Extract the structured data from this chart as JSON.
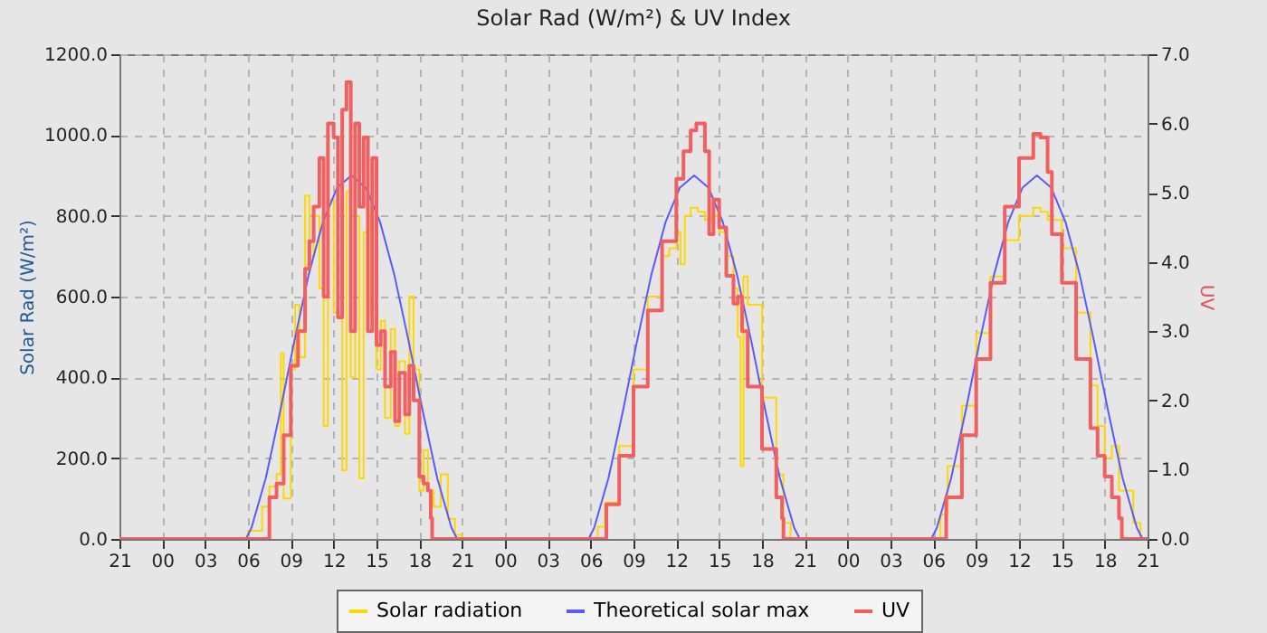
{
  "chart_data": {
    "type": "line",
    "title": "Solar Rad (W/m²) &  UV Index",
    "ylabel": "Solar Rad (W/m²)",
    "y2label": "UV",
    "legend": "bottom",
    "grid": true,
    "xlim": [
      "--01-01T21:00",
      "--01-04T21:00"
    ],
    "ylim": [
      0,
      1200
    ],
    "y2lim": [
      0,
      7
    ],
    "xticks": [
      {
        "value": "--01-01T21:00",
        "label": "21"
      },
      {
        "value": "--01-02T00:00",
        "label": "00"
      },
      {
        "value": "--01-02T03:00",
        "label": "03"
      },
      {
        "value": "--01-02T06:00",
        "label": "06"
      },
      {
        "value": "--01-02T09:00",
        "label": "09"
      },
      {
        "value": "--01-02T12:00",
        "label": "12"
      },
      {
        "value": "--01-02T15:00",
        "label": "15"
      },
      {
        "value": "--01-02T18:00",
        "label": "18"
      },
      {
        "value": "--01-02T21:00",
        "label": "21"
      },
      {
        "value": "--01-03T00:00",
        "label": "00"
      },
      {
        "value": "--01-03T03:00",
        "label": "03"
      },
      {
        "value": "--01-03T06:00",
        "label": "06"
      },
      {
        "value": "--01-03T09:00",
        "label": "09"
      },
      {
        "value": "--01-03T12:00",
        "label": "12"
      },
      {
        "value": "--01-03T15:00",
        "label": "15"
      },
      {
        "value": "--01-03T18:00",
        "label": "18"
      },
      {
        "value": "--01-03T21:00",
        "label": "21"
      },
      {
        "value": "--01-04T00:00",
        "label": "00"
      },
      {
        "value": "--01-04T03:00",
        "label": "03"
      },
      {
        "value": "--01-04T06:00",
        "label": "06"
      },
      {
        "value": "--01-04T09:00",
        "label": "09"
      },
      {
        "value": "--01-04T12:00",
        "label": "12"
      },
      {
        "value": "--01-04T15:00",
        "label": "15"
      },
      {
        "value": "--01-04T18:00",
        "label": "18"
      },
      {
        "value": "--01-04T21:00",
        "label": "21"
      }
    ],
    "yticks": [
      {
        "value": 0,
        "label": "0.0"
      },
      {
        "value": 200,
        "label": "200.0"
      },
      {
        "value": 400,
        "label": "400.0"
      },
      {
        "value": 600,
        "label": "600.0"
      },
      {
        "value": 800,
        "label": "800.0"
      },
      {
        "value": 1000,
        "label": "1000.0"
      },
      {
        "value": 1200,
        "label": "1200.0"
      }
    ],
    "y2ticks": [
      {
        "value": 0,
        "label": "0.0"
      },
      {
        "value": 1,
        "label": "1.0"
      },
      {
        "value": 2,
        "label": "2.0"
      },
      {
        "value": 3,
        "label": "3.0"
      },
      {
        "value": 4,
        "label": "4.0"
      },
      {
        "value": 5,
        "label": "5.0"
      },
      {
        "value": 6,
        "label": "6.0"
      },
      {
        "value": 7,
        "label": "7.0"
      }
    ],
    "series": [
      {
        "name": "Solar radiation",
        "color": "#ffd700",
        "type": "step",
        "x": [
          "--01-01T21:00",
          "--01-02T05:30",
          "--01-02T06:00",
          "--01-02T07:00",
          "--01-02T07:30",
          "--01-02T08:00",
          "--01-02T08:18",
          "--01-02T08:30",
          "--01-02T09:00",
          "--01-02T09:18",
          "--01-02T09:36",
          "--01-02T10:00",
          "--01-02T10:18",
          "--01-02T10:36",
          "--01-02T11:00",
          "--01-02T11:18",
          "--01-02T11:36",
          "--01-02T12:00",
          "--01-02T12:18",
          "--01-02T12:36",
          "--01-02T12:54",
          "--01-02T13:12",
          "--01-02T13:30",
          "--01-02T13:48",
          "--01-02T14:06",
          "--01-02T14:24",
          "--01-02T14:36",
          "--01-02T15:00",
          "--01-02T15:18",
          "--01-02T15:36",
          "--01-02T16:00",
          "--01-02T16:18",
          "--01-02T16:36",
          "--01-02T17:00",
          "--01-02T17:18",
          "--01-02T17:36",
          "--01-02T18:00",
          "--01-02T18:18",
          "--01-02T18:36",
          "--01-02T19:00",
          "--01-02T19:30",
          "--01-02T20:00",
          "--01-02T20:30",
          "--01-02T21:00",
          "--01-03T06:00",
          "--01-03T06:30",
          "--01-03T07:00",
          "--01-03T08:00",
          "--01-03T09:00",
          "--01-03T10:00",
          "--01-03T11:00",
          "--01-03T11:30",
          "--01-03T12:00",
          "--01-03T12:18",
          "--01-03T12:36",
          "--01-03T13:00",
          "--01-03T13:30",
          "--01-03T14:00",
          "--01-03T14:30",
          "--01-03T15:00",
          "--01-03T15:30",
          "--01-03T16:00",
          "--01-03T16:18",
          "--01-03T16:30",
          "--01-03T16:42",
          "--01-03T17:00",
          "--01-03T18:00",
          "--01-03T19:00",
          "--01-03T19:30",
          "--01-03T20:00",
          "--01-04T06:00",
          "--01-04T06:30",
          "--01-04T07:00",
          "--01-04T08:00",
          "--01-04T09:00",
          "--01-04T10:00",
          "--01-04T11:00",
          "--01-04T12:00",
          "--01-04T13:00",
          "--01-04T13:30",
          "--01-04T14:00",
          "--01-04T15:00",
          "--01-04T16:00",
          "--01-04T17:00",
          "--01-04T17:30",
          "--01-04T18:00",
          "--01-04T18:30",
          "--01-04T19:00",
          "--01-04T20:00",
          "--01-04T20:30",
          "--01-04T21:00"
        ],
        "values": [
          0,
          0,
          20,
          80,
          130,
          160,
          460,
          100,
          420,
          580,
          450,
          850,
          700,
          800,
          620,
          280,
          840,
          560,
          820,
          170,
          860,
          400,
          800,
          150,
          760,
          560,
          820,
          420,
          540,
          300,
          520,
          280,
          440,
          260,
          600,
          420,
          120,
          220,
          120,
          80,
          160,
          50,
          10,
          0,
          0,
          30,
          90,
          230,
          420,
          600,
          700,
          720,
          760,
          680,
          800,
          820,
          810,
          790,
          800,
          760,
          700,
          620,
          500,
          180,
          650,
          580,
          350,
          160,
          40,
          0,
          0,
          60,
          180,
          330,
          510,
          650,
          740,
          800,
          820,
          810,
          790,
          720,
          560,
          380,
          280,
          200,
          230,
          120,
          40,
          0,
          0
        ]
      },
      {
        "name": "Theoretical solar max",
        "color": "#5a5aff",
        "type": "line",
        "x": [
          "--01-01T21:00",
          "--01-02T05:51",
          "--01-02T06:15",
          "--01-02T07:15",
          "--01-02T08:15",
          "--01-02T09:15",
          "--01-02T10:15",
          "--01-02T11:15",
          "--01-02T12:15",
          "--01-02T13:15",
          "--01-02T14:15",
          "--01-02T15:15",
          "--01-02T16:15",
          "--01-02T17:15",
          "--01-02T18:15",
          "--01-02T19:15",
          "--01-02T20:15",
          "--01-02T20:39",
          "--01-03T05:51",
          "--01-03T06:15",
          "--01-03T07:15",
          "--01-03T08:15",
          "--01-03T09:15",
          "--01-03T10:15",
          "--01-03T11:15",
          "--01-03T12:15",
          "--01-03T13:15",
          "--01-03T14:15",
          "--01-03T15:15",
          "--01-03T16:15",
          "--01-03T17:15",
          "--01-03T18:15",
          "--01-03T19:15",
          "--01-03T20:15",
          "--01-03T20:39",
          "--01-04T05:51",
          "--01-04T06:15",
          "--01-04T07:15",
          "--01-04T08:15",
          "--01-04T09:15",
          "--01-04T10:15",
          "--01-04T11:15",
          "--01-04T12:15",
          "--01-04T13:15",
          "--01-04T14:15",
          "--01-04T15:15",
          "--01-04T16:15",
          "--01-04T17:15",
          "--01-04T18:15",
          "--01-04T19:15",
          "--01-04T20:15",
          "--01-04T20:39",
          "--01-04T21:00"
        ],
        "values": [
          0,
          0,
          28,
          151,
          315,
          490,
          654,
          785,
          870,
          900,
          870,
          785,
          654,
          490,
          315,
          151,
          28,
          0,
          0,
          28,
          151,
          315,
          490,
          654,
          785,
          870,
          900,
          870,
          785,
          654,
          490,
          315,
          151,
          28,
          0,
          0,
          28,
          151,
          315,
          490,
          654,
          785,
          870,
          900,
          870,
          785,
          654,
          490,
          315,
          151,
          28,
          0,
          0
        ]
      },
      {
        "name": "UV",
        "color": "#f06060",
        "type": "step",
        "axis": "y2",
        "x": [
          "--01-01T21:00",
          "--01-02T07:24",
          "--01-02T07:30",
          "--01-02T08:00",
          "--01-02T08:30",
          "--01-02T09:00",
          "--01-02T09:30",
          "--01-02T10:00",
          "--01-02T10:18",
          "--01-02T10:36",
          "--01-02T11:00",
          "--01-02T11:18",
          "--01-02T11:36",
          "--01-02T12:00",
          "--01-02T12:18",
          "--01-02T12:36",
          "--01-02T12:54",
          "--01-02T13:12",
          "--01-02T13:30",
          "--01-02T13:48",
          "--01-02T14:06",
          "--01-02T14:24",
          "--01-02T14:42",
          "--01-02T15:00",
          "--01-02T15:18",
          "--01-02T15:36",
          "--01-02T16:00",
          "--01-02T16:18",
          "--01-02T16:36",
          "--01-02T17:00",
          "--01-02T17:18",
          "--01-02T17:36",
          "--01-02T18:00",
          "--01-02T18:18",
          "--01-02T18:36",
          "--01-02T18:48",
          "--01-02T18:54",
          "--01-03T07:00",
          "--01-03T07:06",
          "--01-03T08:00",
          "--01-03T09:00",
          "--01-03T10:00",
          "--01-03T11:00",
          "--01-03T12:00",
          "--01-03T12:30",
          "--01-03T13:00",
          "--01-03T13:24",
          "--01-03T14:00",
          "--01-03T14:18",
          "--01-03T14:36",
          "--01-03T15:00",
          "--01-03T15:30",
          "--01-03T16:00",
          "--01-03T16:18",
          "--01-03T16:36",
          "--01-03T17:00",
          "--01-03T18:00",
          "--01-03T19:00",
          "--01-03T19:24",
          "--01-03T19:30",
          "--01-04T06:48",
          "--01-04T06:54",
          "--01-04T08:00",
          "--01-04T09:00",
          "--01-04T10:00",
          "--01-04T11:00",
          "--01-04T12:00",
          "--01-04T13:00",
          "--01-04T13:30",
          "--01-04T14:00",
          "--01-04T14:18",
          "--01-04T15:00",
          "--01-04T16:00",
          "--01-04T17:00",
          "--01-04T17:30",
          "--01-04T18:00",
          "--01-04T18:30",
          "--01-04T19:00",
          "--01-04T19:12",
          "--01-04T21:00"
        ],
        "values": [
          0,
          0,
          0.6,
          0.8,
          1.5,
          2.5,
          3.0,
          3.9,
          4.3,
          4.8,
          5.5,
          3.5,
          6.0,
          5.8,
          3.2,
          6.2,
          6.6,
          3.0,
          6.0,
          4.8,
          5.8,
          3.0,
          5.5,
          2.8,
          3.0,
          2.2,
          2.7,
          1.7,
          2.4,
          1.8,
          2.5,
          2.0,
          0.9,
          0.8,
          0.7,
          0.3,
          0,
          0,
          0.5,
          1.2,
          2.2,
          3.3,
          4.3,
          5.2,
          5.6,
          5.9,
          6.0,
          5.6,
          4.4,
          4.9,
          4.5,
          3.8,
          3.4,
          3.5,
          3.0,
          2.2,
          1.3,
          0.6,
          0.3,
          0,
          0,
          0.6,
          1.5,
          2.6,
          3.7,
          4.8,
          5.5,
          5.85,
          5.8,
          5.3,
          4.4,
          3.7,
          2.6,
          1.6,
          1.2,
          0.9,
          0.6,
          0.3,
          0,
          0
        ]
      }
    ]
  }
}
